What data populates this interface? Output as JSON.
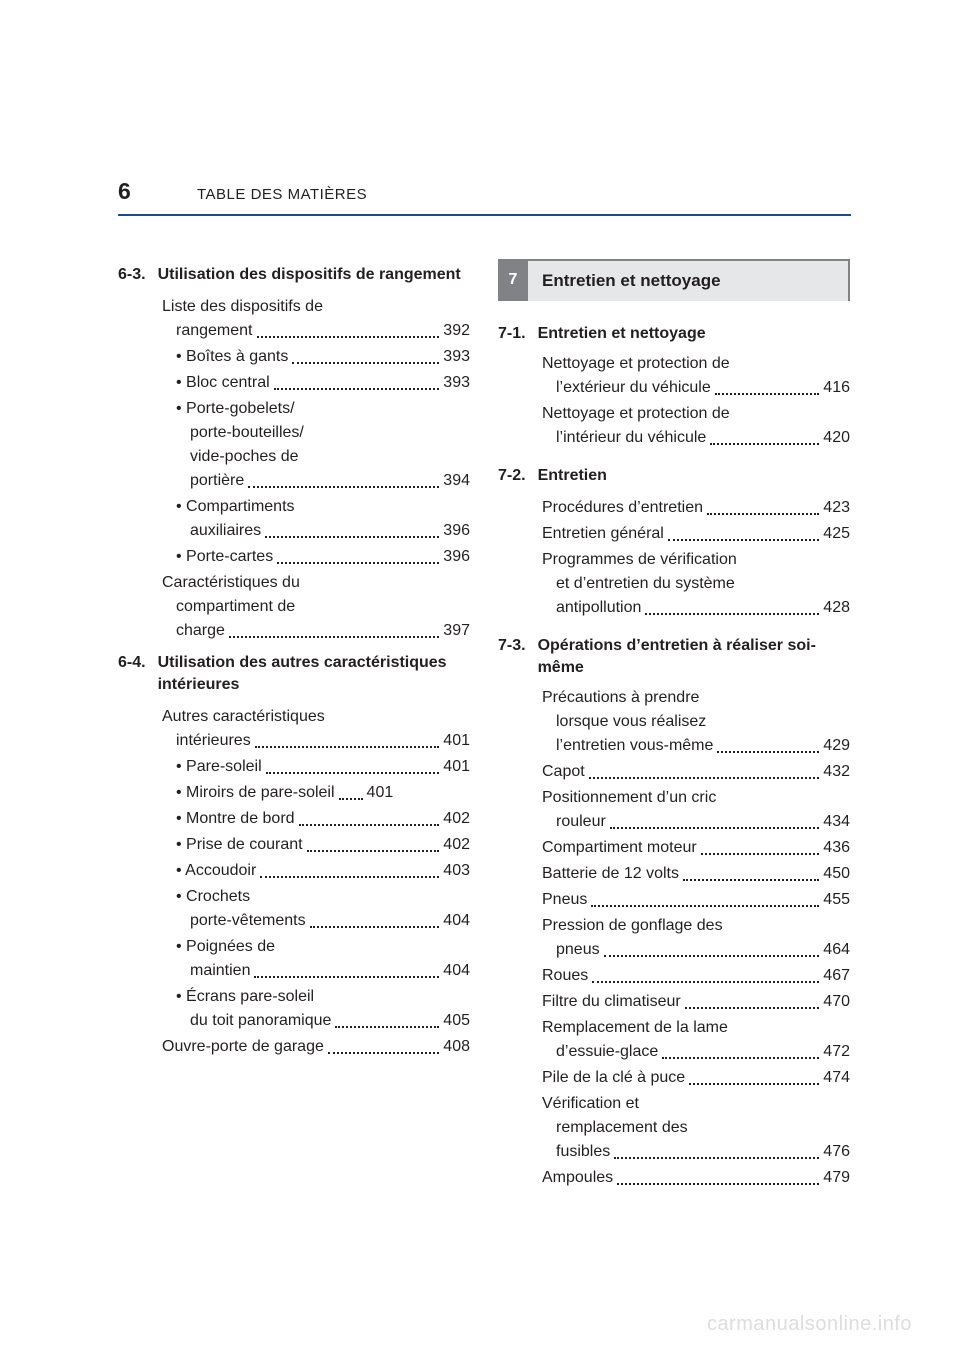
{
  "page": {
    "number": "6",
    "header": "TABLE DES MATIÈRES"
  },
  "colors": {
    "text": "#231f20",
    "rule": "#1a4b8c",
    "tab_bg": "#808285",
    "tab_text": "#ffffff",
    "title_bg": "#e6e7e8",
    "watermark": "#dcddde"
  },
  "typography": {
    "body_fontsize_pt": 12,
    "heading_fontsize_pt": 12,
    "page_number_fontsize_pt": 17,
    "header_fontsize_pt": 11
  },
  "left": {
    "sections": [
      {
        "num": "6-3.",
        "title": "Utilisation des dispositifs de rangement",
        "items": [
          {
            "type": "wrap",
            "indent": 1,
            "lines": [
              "Liste des dispositifs de"
            ]
          },
          {
            "type": "line",
            "indent": 1,
            "label": "rangement",
            "continuation": true,
            "page": "392"
          },
          {
            "type": "line",
            "indent": 2,
            "label": "• Boîtes à gants",
            "page": "393"
          },
          {
            "type": "line",
            "indent": 2,
            "label": "• Bloc central",
            "page": "393"
          },
          {
            "type": "wrap",
            "indent": 2,
            "lines": [
              "• Porte-gobelets/",
              "porte-bouteilles/",
              "vide-poches de"
            ]
          },
          {
            "type": "line",
            "indent": 2,
            "label": "portière",
            "continuation": true,
            "page": "394"
          },
          {
            "type": "wrap",
            "indent": 2,
            "lines": [
              "• Compartiments"
            ]
          },
          {
            "type": "line",
            "indent": 2,
            "label": "auxiliaires",
            "continuation": true,
            "page": "396"
          },
          {
            "type": "line",
            "indent": 2,
            "label": "• Porte-cartes",
            "page": "396"
          },
          {
            "type": "wrap",
            "indent": 1,
            "lines": [
              "Caractéristiques du",
              "compartiment de"
            ]
          },
          {
            "type": "line",
            "indent": 1,
            "label": "charge",
            "continuation": true,
            "page": "397"
          }
        ]
      },
      {
        "num": "6-4.",
        "title": "Utilisation des autres caractéristiques intérieures",
        "items": [
          {
            "type": "wrap",
            "indent": 1,
            "lines": [
              "Autres caractéristiques"
            ]
          },
          {
            "type": "line",
            "indent": 1,
            "label": "intérieures",
            "continuation": true,
            "page": "401"
          },
          {
            "type": "line",
            "indent": 2,
            "label": "• Pare-soleil",
            "page": "401"
          },
          {
            "type": "line",
            "indent": 2,
            "label": "• Miroirs de pare-soleil",
            "page": "401",
            "short_leader": true
          },
          {
            "type": "line",
            "indent": 2,
            "label": "• Montre de bord",
            "page": "402"
          },
          {
            "type": "line",
            "indent": 2,
            "label": "• Prise de courant",
            "page": "402"
          },
          {
            "type": "line",
            "indent": 2,
            "label": "• Accoudoir",
            "page": "403"
          },
          {
            "type": "wrap",
            "indent": 2,
            "lines": [
              "• Crochets"
            ]
          },
          {
            "type": "line",
            "indent": 2,
            "label": "porte-vêtements",
            "continuation": true,
            "page": "404"
          },
          {
            "type": "wrap",
            "indent": 2,
            "lines": [
              "• Poignées de"
            ]
          },
          {
            "type": "line",
            "indent": 2,
            "label": "maintien",
            "continuation": true,
            "page": "404"
          },
          {
            "type": "wrap",
            "indent": 2,
            "lines": [
              "• Écrans pare-soleil"
            ]
          },
          {
            "type": "line",
            "indent": 2,
            "label": "du toit panoramique",
            "continuation": true,
            "page": "405"
          },
          {
            "type": "line",
            "indent": 1,
            "label": "Ouvre-porte de garage",
            "page": "408"
          }
        ]
      }
    ]
  },
  "right": {
    "chapter": {
      "number": "7",
      "title": "Entretien et nettoyage"
    },
    "sections": [
      {
        "num": "7-1.",
        "title": "Entretien et nettoyage",
        "items": [
          {
            "type": "wrap",
            "lines": [
              "Nettoyage et protection de"
            ]
          },
          {
            "type": "line",
            "label": "l’extérieur du véhicule",
            "continuation": true,
            "page": "416"
          },
          {
            "type": "wrap",
            "lines": [
              "Nettoyage et protection de"
            ]
          },
          {
            "type": "line",
            "label": "l’intérieur du véhicule",
            "continuation": true,
            "page": "420"
          }
        ]
      },
      {
        "num": "7-2.",
        "title": "Entretien",
        "items": [
          {
            "type": "line",
            "label": "Procédures d’entretien",
            "page": "423"
          },
          {
            "type": "line",
            "label": "Entretien général",
            "page": "425"
          },
          {
            "type": "wrap",
            "lines": [
              "Programmes de vérification",
              "et d’entretien du système"
            ]
          },
          {
            "type": "line",
            "label": "antipollution",
            "continuation": true,
            "page": "428"
          }
        ]
      },
      {
        "num": "7-3.",
        "title": "Opérations d’entretien à réaliser soi-même",
        "items": [
          {
            "type": "wrap",
            "lines": [
              "Précautions à prendre",
              "lorsque vous réalisez"
            ]
          },
          {
            "type": "line",
            "label": "l’entretien vous-même",
            "continuation": true,
            "page": "429"
          },
          {
            "type": "line",
            "label": "Capot",
            "page": "432"
          },
          {
            "type": "wrap",
            "lines": [
              "Positionnement d’un cric"
            ]
          },
          {
            "type": "line",
            "label": "rouleur",
            "continuation": true,
            "page": "434"
          },
          {
            "type": "line",
            "label": "Compartiment moteur",
            "page": "436"
          },
          {
            "type": "line",
            "label": "Batterie de 12 volts",
            "page": "450"
          },
          {
            "type": "line",
            "label": "Pneus",
            "page": "455"
          },
          {
            "type": "wrap",
            "lines": [
              "Pression de gonflage des"
            ]
          },
          {
            "type": "line",
            "label": "pneus",
            "continuation": true,
            "page": "464"
          },
          {
            "type": "line",
            "label": "Roues",
            "page": "467"
          },
          {
            "type": "line",
            "label": "Filtre du climatiseur",
            "page": "470"
          },
          {
            "type": "wrap",
            "lines": [
              "Remplacement de la lame"
            ]
          },
          {
            "type": "line",
            "label": "d’essuie-glace",
            "continuation": true,
            "page": "472"
          },
          {
            "type": "line",
            "label": "Pile de la clé à puce",
            "page": "474"
          },
          {
            "type": "wrap",
            "lines": [
              "Vérification et",
              "remplacement des"
            ]
          },
          {
            "type": "line",
            "label": "fusibles",
            "continuation": true,
            "page": "476"
          },
          {
            "type": "line",
            "label": "Ampoules",
            "page": "479"
          }
        ]
      }
    ]
  },
  "watermark": "carmanualsonline.info"
}
